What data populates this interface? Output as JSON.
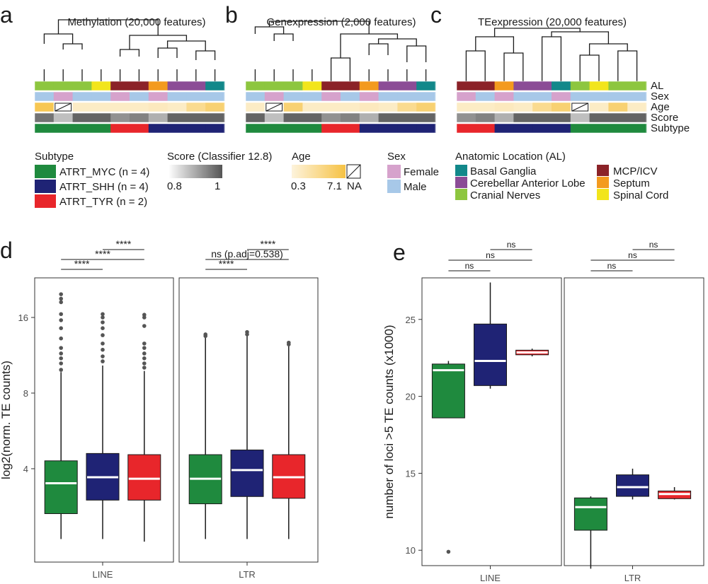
{
  "colors": {
    "myc": "#1f8a3e",
    "shh": "#1f2375",
    "tyr": "#e8262b",
    "basal_ganglia": "#12888a",
    "cerebellar": "#8b4c96",
    "cranial": "#8dc63f",
    "mcp": "#8b2228",
    "septum": "#f39a1e",
    "spinal": "#f2e51c",
    "female": "#d6a2cc",
    "male": "#a7c8e8",
    "age_low": "#fdf3dc",
    "age_high": "#f6c244",
    "score_low": "#ececec",
    "score_high": "#555555"
  },
  "heatmap_panels": [
    {
      "letter": "a",
      "title": "Methylation (20,000 features)",
      "rows": {
        "AL": [
          "cranial",
          "cranial",
          "cranial",
          "spinal",
          "mcp",
          "mcp",
          "septum",
          "cerebellar",
          "cerebellar",
          "basal_ganglia"
        ],
        "Sex": [
          "male",
          "female",
          "male",
          "male",
          "female",
          "male",
          "female",
          "male",
          "male",
          "male"
        ],
        "Age": [
          0.9,
          "NA",
          0.15,
          0.15,
          0.15,
          0.15,
          0.2,
          0.15,
          0.5,
          0.7
        ],
        "Score": [
          0.8,
          0.3,
          0.9,
          0.9,
          0.6,
          0.7,
          0.4,
          0.9,
          0.9,
          0.9
        ],
        "Subtype": [
          "myc",
          "myc",
          "myc",
          "myc",
          "tyr",
          "tyr",
          "shh",
          "shh",
          "shh",
          "shh"
        ]
      }
    },
    {
      "letter": "b",
      "title": "Genexpression (2,000 features)",
      "rows": {
        "AL": [
          "cranial",
          "cranial",
          "cranial",
          "spinal",
          "mcp",
          "mcp",
          "septum",
          "cerebellar",
          "cerebellar",
          "basal_ganglia"
        ],
        "Sex": [
          "male",
          "female",
          "male",
          "male",
          "female",
          "male",
          "female",
          "male",
          "male",
          "male"
        ],
        "Age": [
          0.15,
          "NA",
          0.7,
          0.15,
          0.15,
          0.15,
          0.2,
          0.15,
          0.5,
          0.7
        ],
        "Score": [
          0.9,
          0.3,
          0.9,
          0.9,
          0.6,
          0.7,
          0.4,
          0.9,
          0.9,
          0.9
        ],
        "Subtype": [
          "myc",
          "myc",
          "myc",
          "myc",
          "tyr",
          "tyr",
          "shh",
          "shh",
          "shh",
          "shh"
        ]
      }
    },
    {
      "letter": "c",
      "title": "TEexpression (20,000 features)",
      "rows": {
        "AL": [
          "mcp",
          "mcp",
          "septum",
          "cerebellar",
          "cerebellar",
          "basal_ganglia",
          "cranial",
          "spinal",
          "cranial",
          "cranial"
        ],
        "Sex": [
          "female",
          "male",
          "female",
          "male",
          "male",
          "female",
          "male",
          "male",
          "male",
          "male"
        ],
        "Age": [
          0.15,
          0.15,
          0.2,
          0.15,
          0.5,
          0.7,
          "NA",
          0.15,
          0.7,
          0.15
        ],
        "Score": [
          0.6,
          0.7,
          0.4,
          0.9,
          0.9,
          0.9,
          0.3,
          0.9,
          0.9,
          0.9
        ],
        "Subtype": [
          "tyr",
          "tyr",
          "shh",
          "shh",
          "shh",
          "shh",
          "myc",
          "myc",
          "myc",
          "myc"
        ]
      }
    }
  ],
  "row_labels": [
    "AL",
    "Sex",
    "Age",
    "Score",
    "Subtype"
  ],
  "legend": {
    "subtype_title": "Subtype",
    "subtype_items": [
      {
        "key": "myc",
        "label": "ATRT_MYC (n = 4)"
      },
      {
        "key": "shh",
        "label": "ATRT_SHH (n = 4)"
      },
      {
        "key": "tyr",
        "label": "ATRT_TYR (n = 2)"
      }
    ],
    "score_title": "Score (Classifier 12.8)",
    "score_min": "0.8",
    "score_max": "1",
    "age_title": "Age",
    "age_min": "0.3",
    "age_max": "7.1",
    "age_na": "NA",
    "sex_title": "Sex",
    "sex_items": [
      {
        "key": "female",
        "label": "Female"
      },
      {
        "key": "male",
        "label": "Male"
      }
    ],
    "al_title": "Anatomic Location (AL)",
    "al_items_left": [
      {
        "key": "basal_ganglia",
        "label": "Basal Ganglia"
      },
      {
        "key": "cerebellar",
        "label": "Cerebellar Anterior Lobe"
      },
      {
        "key": "cranial",
        "label": "Cranial Nerves"
      }
    ],
    "al_items_right": [
      {
        "key": "mcp",
        "label": "MCP/ICV"
      },
      {
        "key": "septum",
        "label": "Septum"
      },
      {
        "key": "spinal",
        "label": "Spinal Cord"
      }
    ]
  },
  "chart_data": [
    {
      "panel": "d",
      "type": "box",
      "ylabel": "log2(norm. TE counts)",
      "scale": "log2",
      "yticks": [
        4,
        8,
        16
      ],
      "ylim": [
        1.7,
        23
      ],
      "facets": [
        {
          "name": "LINE",
          "boxes": [
            {
              "group": "myc",
              "whislo": 2.1,
              "q1": 2.65,
              "med": 3.5,
              "q3": 4.3,
              "whishi": 9.7,
              "outliers": [
                9.9,
                10.5,
                11.0,
                11.5,
                12.1,
                13.2,
                14.5,
                15.6,
                16.5,
                18.4,
                19.0,
                19.8
              ]
            },
            {
              "group": "shh",
              "whislo": 2.1,
              "q1": 3.0,
              "med": 3.7,
              "q3": 4.6,
              "whishi": 10.3,
              "outliers": [
                10.7,
                11.2,
                11.9,
                12.6,
                13.6,
                14.5,
                15.3,
                16.0,
                16.5
              ]
            },
            {
              "group": "tyr",
              "whislo": 2.05,
              "q1": 3.0,
              "med": 3.65,
              "q3": 4.55,
              "whishi": 9.8,
              "outliers": [
                10.1,
                10.5,
                11.0,
                11.5,
                12.1,
                12.6,
                14.8,
                16.0,
                16.4
              ]
            }
          ],
          "comparisons": [
            {
              "label": "****",
              "from": 0,
              "to": 1
            },
            {
              "label": "****",
              "from": 0,
              "to": 2
            },
            {
              "label": "****",
              "from": 1,
              "to": 2
            }
          ]
        },
        {
          "name": "LTR",
          "boxes": [
            {
              "group": "myc",
              "whislo": 2.1,
              "q1": 2.9,
              "med": 3.65,
              "q3": 4.55,
              "whishi": 13.3,
              "outliers": [
                13.5,
                13.7
              ]
            },
            {
              "group": "shh",
              "whislo": 2.1,
              "q1": 3.1,
              "med": 3.95,
              "q3": 4.75,
              "whishi": 13.5,
              "outliers": [
                13.7,
                14.0
              ]
            },
            {
              "group": "tyr",
              "whislo": 2.1,
              "q1": 3.05,
              "med": 3.7,
              "q3": 4.55,
              "whishi": 12.3,
              "outliers": [
                12.5,
                12.7
              ]
            }
          ],
          "comparisons": [
            {
              "label": "****",
              "from": 0,
              "to": 1
            },
            {
              "label": "ns (p.adj=0.538)",
              "from": 0,
              "to": 2
            },
            {
              "label": "****",
              "from": 1,
              "to": 2
            }
          ]
        }
      ]
    },
    {
      "panel": "e",
      "type": "box",
      "ylabel": "number of loci >5 TE counts (x1000)",
      "yticks": [
        10,
        15,
        20,
        25
      ],
      "ylim": [
        9.0,
        27.7
      ],
      "facets": [
        {
          "name": "LINE",
          "boxes": [
            {
              "group": "myc",
              "whislo": 18.6,
              "q1": 18.6,
              "med": 21.7,
              "q3": 22.1,
              "whishi": 22.3,
              "outliers": [
                9.9
              ]
            },
            {
              "group": "shh",
              "whislo": 20.5,
              "q1": 20.7,
              "med": 22.3,
              "q3": 24.7,
              "whishi": 27.4,
              "outliers": []
            },
            {
              "group": "tyr",
              "whislo": 22.6,
              "q1": 22.7,
              "med": 22.85,
              "q3": 23.0,
              "whishi": 23.1,
              "outliers": []
            }
          ],
          "comparisons": [
            {
              "label": "ns",
              "from": 0,
              "to": 1
            },
            {
              "label": "ns",
              "from": 0,
              "to": 2
            },
            {
              "label": "ns",
              "from": 1,
              "to": 2
            }
          ]
        },
        {
          "name": "LTR",
          "boxes": [
            {
              "group": "myc",
              "whislo": 8.8,
              "q1": 11.3,
              "med": 12.8,
              "q3": 13.4,
              "whishi": 13.5,
              "outliers": []
            },
            {
              "group": "shh",
              "whislo": 13.3,
              "q1": 13.5,
              "med": 14.1,
              "q3": 14.9,
              "whishi": 15.3,
              "outliers": []
            },
            {
              "group": "tyr",
              "whislo": 13.3,
              "q1": 13.35,
              "med": 13.65,
              "q3": 13.85,
              "whishi": 14.1,
              "outliers": []
            }
          ],
          "comparisons": [
            {
              "label": "ns",
              "from": 0,
              "to": 1
            },
            {
              "label": "ns",
              "from": 0,
              "to": 2
            },
            {
              "label": "ns",
              "from": 1,
              "to": 2
            }
          ]
        }
      ]
    }
  ]
}
